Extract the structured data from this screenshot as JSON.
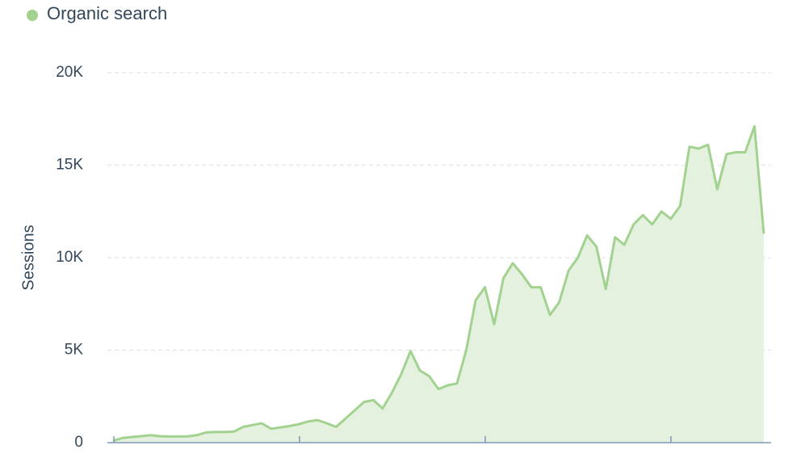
{
  "chart_data": {
    "type": "area",
    "y_label": "Sessions",
    "series": [
      {
        "name": "Organic search",
        "color": "#a2d28f",
        "fill": "#e5f1df",
        "values": [
          100,
          250,
          300,
          350,
          400,
          350,
          330,
          330,
          340,
          400,
          550,
          580,
          570,
          600,
          850,
          950,
          1050,
          750,
          820,
          900,
          1000,
          1150,
          1220,
          1050,
          850,
          1300,
          1750,
          2200,
          2300,
          1850,
          2700,
          3700,
          4950,
          3900,
          3600,
          2900,
          3100,
          3200,
          5000,
          7700,
          8400,
          6400,
          8900,
          9700,
          9100,
          8400,
          8400,
          6900,
          7600,
          9300,
          10000,
          11200,
          10600,
          8300,
          11100,
          10700,
          11800,
          12300,
          11800,
          12500,
          12100,
          12800,
          16000,
          15900,
          16100,
          13700,
          15600,
          15700,
          15700,
          17100,
          11300
        ]
      }
    ],
    "ylim": [
      0,
      20000
    ],
    "yticks": [
      0,
      {
        "value": 5000,
        "label": "5K"
      },
      {
        "value": 10000,
        "label": "10K"
      },
      {
        "value": 15000,
        "label": "15K"
      },
      {
        "value": 20000,
        "label": "20K"
      }
    ],
    "grid": true
  }
}
